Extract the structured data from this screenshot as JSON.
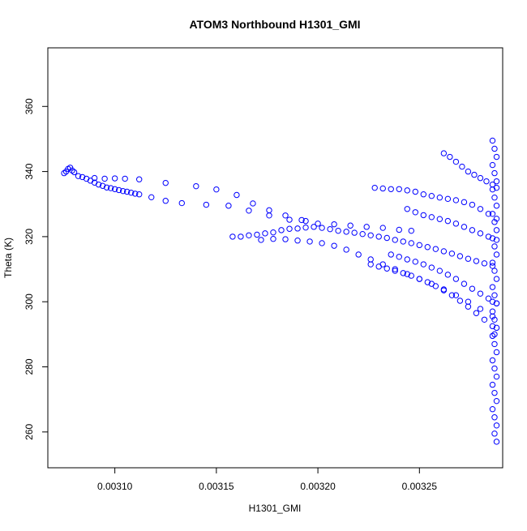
{
  "chart_data": {
    "type": "scatter",
    "title": "ATOM3 Northbound H1301_GMI",
    "xlabel": "H1301_GMI",
    "ylabel": "Theta (K)",
    "xlim": [
      0.003067,
      0.003291
    ],
    "ylim": [
      249,
      378
    ],
    "xticks": [
      0.0031,
      0.00315,
      0.0032,
      0.00325
    ],
    "xtick_labels": [
      "0.00310",
      "0.00315",
      "0.00320",
      "0.00325"
    ],
    "yticks": [
      260,
      280,
      300,
      320,
      340,
      360
    ],
    "ytick_labels": [
      "260",
      "280",
      "300",
      "320",
      "340",
      "360"
    ],
    "grid": false,
    "legend": "none",
    "colors": {
      "points": "#0000ff",
      "axis": "#000000"
    },
    "series": [
      {
        "x": [
          0.003075,
          0.003076,
          0.003077,
          0.003078,
          0.003079,
          0.00308,
          0.003082,
          0.003084,
          0.003086,
          0.003088,
          0.00309,
          0.003092,
          0.003094,
          0.003096,
          0.003098,
          0.0031,
          0.003102,
          0.003104,
          0.003106,
          0.003108,
          0.00311,
          0.003112
        ],
        "y": [
          339.5,
          340.0,
          340.8,
          341.2,
          340.3,
          339.8,
          338.6,
          338.3,
          337.8,
          337.2,
          336.6,
          336.0,
          335.6,
          335.1,
          334.9,
          334.6,
          334.3,
          334.0,
          333.8,
          333.5,
          333.2,
          333.0
        ]
      },
      {
        "x": [
          0.00309,
          0.003095,
          0.0031,
          0.003105,
          0.003112,
          0.003125,
          0.00314,
          0.00315,
          0.00316,
          0.003168,
          0.003176,
          0.003184,
          0.003192
        ],
        "y": [
          338.0,
          337.8,
          337.9,
          337.8,
          337.6,
          336.5,
          335.5,
          334.5,
          332.8,
          330.2,
          328.1,
          326.5,
          325.1
        ]
      },
      {
        "x": [
          0.003118,
          0.003125,
          0.003133,
          0.003145,
          0.003156,
          0.003166,
          0.003176,
          0.003186,
          0.003194,
          0.0032,
          0.003208,
          0.003216,
          0.003224,
          0.003232,
          0.00324,
          0.003246
        ],
        "y": [
          332.1,
          331.0,
          330.3,
          329.8,
          329.5,
          328.0,
          326.5,
          325.2,
          324.8,
          324.0,
          323.8,
          323.4,
          323.0,
          322.7,
          322.1,
          321.8
        ]
      },
      {
        "x": [
          0.003158,
          0.003162,
          0.003166,
          0.00317,
          0.003174,
          0.003178,
          0.003182,
          0.003186,
          0.00319,
          0.003194,
          0.003198,
          0.003202,
          0.003206,
          0.00321,
          0.003214,
          0.003218,
          0.003222,
          0.003226,
          0.00323,
          0.003234,
          0.003238,
          0.003242,
          0.003246,
          0.00325,
          0.003254,
          0.003258,
          0.003262,
          0.003266,
          0.00327,
          0.003274,
          0.003278,
          0.003282,
          0.003286
        ],
        "y": [
          320.0,
          320.0,
          320.4,
          320.6,
          321.0,
          321.3,
          322.0,
          322.4,
          322.5,
          322.8,
          323.0,
          322.7,
          322.3,
          321.8,
          321.5,
          321.2,
          320.8,
          320.4,
          320.0,
          319.6,
          319.0,
          318.5,
          318.0,
          317.4,
          316.8,
          316.2,
          315.5,
          314.8,
          314.0,
          313.2,
          312.5,
          311.8,
          311.0
        ]
      },
      {
        "x": [
          0.003172,
          0.003178,
          0.003184,
          0.00319,
          0.003196,
          0.003202,
          0.003208,
          0.003214,
          0.00322,
          0.003226,
          0.003232,
          0.003238,
          0.003244,
          0.00325,
          0.003256,
          0.003262,
          0.003268,
          0.003274,
          0.00328,
          0.003286
        ],
        "y": [
          319.0,
          319.3,
          319.2,
          318.8,
          318.5,
          318.0,
          317.2,
          316.0,
          314.5,
          313.0,
          311.5,
          310.0,
          308.5,
          307.0,
          305.5,
          303.8,
          302.0,
          300.0,
          297.8,
          295.5
        ]
      },
      {
        "x": [
          0.003228,
          0.003232,
          0.003236,
          0.00324,
          0.003244,
          0.003248,
          0.003252,
          0.003256,
          0.00326,
          0.003264,
          0.003268,
          0.003272,
          0.003276,
          0.00328,
          0.003284,
          0.003288
        ],
        "y": [
          335.0,
          334.8,
          334.6,
          334.6,
          334.2,
          333.8,
          333.0,
          332.5,
          332.0,
          331.6,
          331.2,
          330.6,
          329.8,
          328.5,
          327.0,
          325.5
        ]
      },
      {
        "x": [
          0.003262,
          0.003265,
          0.003268,
          0.003271,
          0.003274,
          0.003277,
          0.00328,
          0.003283,
          0.003286,
          0.003288
        ],
        "y": [
          345.6,
          344.5,
          343.0,
          341.5,
          340.0,
          339.0,
          338.0,
          337.0,
          336.0,
          335.0
        ]
      },
      {
        "x": [
          0.003244,
          0.003248,
          0.003252,
          0.003256,
          0.00326,
          0.003264,
          0.003268,
          0.003272,
          0.003276,
          0.00328,
          0.003284,
          0.003288
        ],
        "y": [
          328.5,
          327.5,
          326.6,
          326.0,
          325.4,
          324.8,
          324.0,
          323.0,
          322.0,
          321.0,
          320.0,
          319.0
        ]
      },
      {
        "x": [
          0.003236,
          0.00324,
          0.003244,
          0.003248,
          0.003252,
          0.003256,
          0.00326,
          0.003264,
          0.003268,
          0.003272,
          0.003276,
          0.00328,
          0.003284,
          0.003288
        ],
        "y": [
          314.5,
          313.8,
          313.0,
          312.3,
          311.5,
          310.5,
          309.5,
          308.3,
          307.0,
          305.5,
          304.0,
          302.5,
          301.0,
          299.5
        ]
      },
      {
        "x": [
          0.003226,
          0.00323,
          0.003234,
          0.003238,
          0.003242,
          0.003246,
          0.00325,
          0.003254,
          0.003258,
          0.003262,
          0.003266,
          0.00327,
          0.003274,
          0.003278,
          0.003282,
          0.003286
        ],
        "y": [
          311.5,
          310.8,
          310.2,
          309.5,
          308.8,
          308.0,
          307.0,
          306.0,
          304.8,
          303.5,
          302.0,
          300.3,
          298.5,
          296.5,
          294.5,
          292.5
        ]
      },
      {
        "x": [
          0.003286,
          0.003287,
          0.003288,
          0.003286,
          0.003287,
          0.003288,
          0.003286,
          0.003287,
          0.003288,
          0.003286,
          0.003287,
          0.003288,
          0.003286,
          0.003287,
          0.003288,
          0.003286,
          0.003287,
          0.003288,
          0.003286,
          0.003287,
          0.003288,
          0.003286,
          0.003287,
          0.003288,
          0.003286,
          0.003287,
          0.003288,
          0.003286,
          0.003287,
          0.003288,
          0.003286,
          0.003287,
          0.003288,
          0.003286,
          0.003287,
          0.003288,
          0.003287,
          0.003288,
          0.003286,
          0.003287
        ],
        "y": [
          349.5,
          347.0,
          344.5,
          342.0,
          339.5,
          337.0,
          334.5,
          332.0,
          329.5,
          327.0,
          324.5,
          322.0,
          319.5,
          317.0,
          314.5,
          312.0,
          309.5,
          307.0,
          304.5,
          302.0,
          299.5,
          297.0,
          294.5,
          292.0,
          289.5,
          287.0,
          284.5,
          282.0,
          279.5,
          277.0,
          274.5,
          272.0,
          269.5,
          267.0,
          264.5,
          262.0,
          259.5,
          257.0,
          300.0,
          290.0
        ]
      }
    ]
  }
}
